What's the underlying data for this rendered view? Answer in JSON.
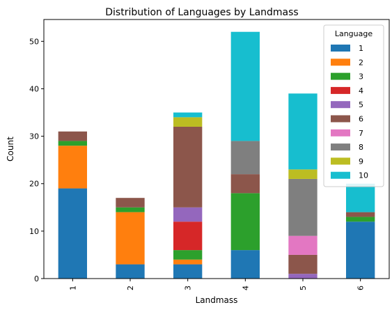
{
  "chart_data": {
    "type": "bar",
    "stacked": true,
    "title": "Distribution of Languages by Landmass",
    "xlabel": "Landmass",
    "ylabel": "Count",
    "categories": [
      "1",
      "2",
      "3",
      "4",
      "5",
      "6"
    ],
    "ylim": [
      0,
      54.6
    ],
    "yticks": [
      0,
      10,
      20,
      30,
      40,
      50
    ],
    "grid": false,
    "legend": {
      "title": "Language",
      "placement": "top-right"
    },
    "series": [
      {
        "name": "1",
        "color": "#1f77b4",
        "values": [
          19,
          3,
          3,
          6,
          0,
          12
        ]
      },
      {
        "name": "2",
        "color": "#ff7f0e",
        "values": [
          9,
          11,
          1,
          0,
          0,
          0
        ]
      },
      {
        "name": "3",
        "color": "#2ca02c",
        "values": [
          1,
          1,
          2,
          12,
          0,
          1
        ]
      },
      {
        "name": "4",
        "color": "#d62728",
        "values": [
          0,
          0,
          6,
          0,
          0,
          0
        ]
      },
      {
        "name": "5",
        "color": "#9467bd",
        "values": [
          0,
          0,
          3,
          0,
          1,
          0
        ]
      },
      {
        "name": "6",
        "color": "#8c564b",
        "values": [
          2,
          2,
          17,
          4,
          4,
          1
        ]
      },
      {
        "name": "7",
        "color": "#e377c2",
        "values": [
          0,
          0,
          0,
          0,
          4,
          0
        ]
      },
      {
        "name": "8",
        "color": "#7f7f7f",
        "values": [
          0,
          0,
          0,
          7,
          12,
          0
        ]
      },
      {
        "name": "9",
        "color": "#bcbd22",
        "values": [
          0,
          0,
          2,
          0,
          2,
          0
        ]
      },
      {
        "name": "10",
        "color": "#17becf",
        "values": [
          0,
          0,
          1,
          23,
          16,
          6
        ]
      }
    ]
  }
}
